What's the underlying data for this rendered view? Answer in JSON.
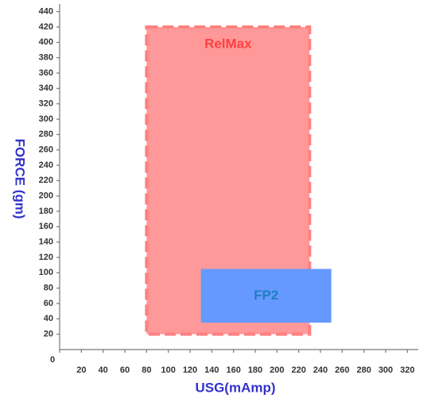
{
  "chart_data": {
    "type": "region",
    "xlabel": "USG(mAmp)",
    "ylabel": "FORCE (gm)",
    "xlim": [
      0,
      330
    ],
    "ylim": [
      0,
      450
    ],
    "xticks": [
      0,
      20,
      40,
      60,
      80,
      100,
      120,
      140,
      160,
      180,
      200,
      220,
      240,
      260,
      280,
      300,
      320
    ],
    "yticks": [
      20,
      40,
      60,
      80,
      100,
      120,
      140,
      160,
      180,
      200,
      220,
      240,
      260,
      280,
      300,
      320,
      340,
      360,
      380,
      400,
      420,
      440
    ],
    "series": [
      {
        "name": "RelMax",
        "color": "#ff9999",
        "label_color": "#ff4040",
        "x": [
          80,
          230
        ],
        "y": [
          20,
          420
        ]
      },
      {
        "name": "FP2",
        "color": "#6699ff",
        "label_color": "#1f7fbf",
        "x": [
          130,
          250
        ],
        "y": [
          35,
          105
        ]
      }
    ]
  }
}
